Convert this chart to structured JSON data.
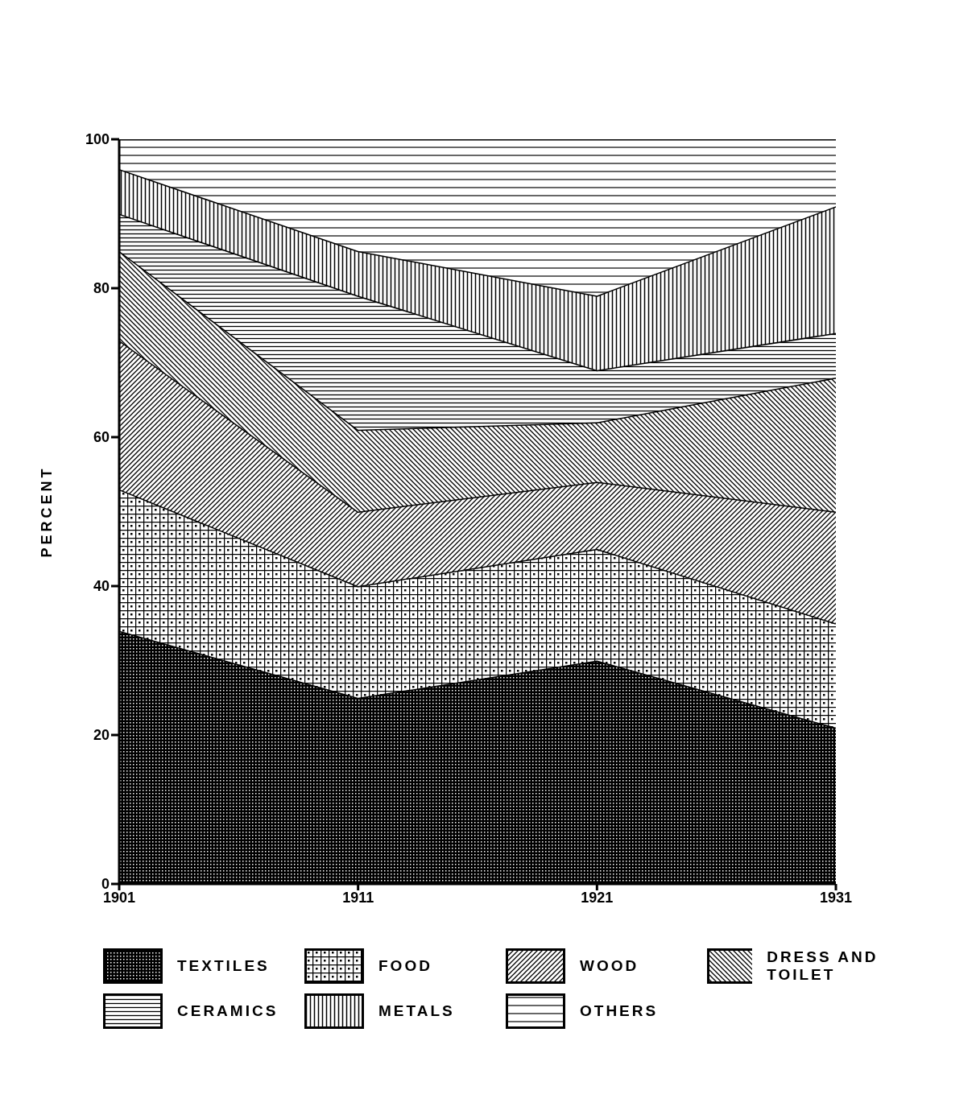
{
  "chart_data": {
    "type": "area",
    "stacked": true,
    "ylabel": "PERCENT",
    "x": [
      1901,
      1911,
      1921,
      1931
    ],
    "xlim": [
      1901,
      1931
    ],
    "xticks": [
      1901,
      1911,
      1921,
      1931
    ],
    "ylim": [
      0,
      100
    ],
    "yticks": [
      0,
      20,
      40,
      60,
      80,
      100
    ],
    "grid": false,
    "legend": "bottom",
    "series": [
      {
        "name": "TEXTILES",
        "color": "#000000",
        "values": [
          34,
          25,
          30,
          21
        ]
      },
      {
        "name": "FOOD",
        "color": "#000000",
        "values": [
          19,
          15,
          15,
          14
        ]
      },
      {
        "name": "WOOD",
        "color": "#000000",
        "values": [
          20,
          10,
          9,
          15
        ]
      },
      {
        "name": "DRESS AND TOILET",
        "color": "#000000",
        "values": [
          12,
          11,
          8,
          18
        ]
      },
      {
        "name": "CERAMICS",
        "color": "#000000",
        "values": [
          5,
          18,
          7,
          6
        ]
      },
      {
        "name": "METALS",
        "color": "#000000",
        "values": [
          6,
          6,
          10,
          17
        ]
      },
      {
        "name": "OTHERS",
        "color": "#000000",
        "values": [
          4,
          15,
          21,
          9
        ]
      }
    ]
  }
}
